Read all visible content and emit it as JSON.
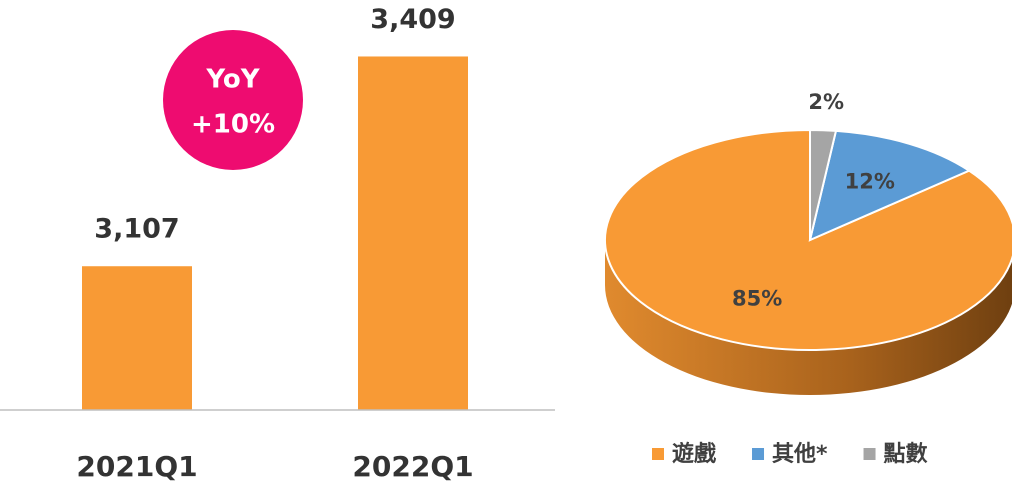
{
  "chart_data": [
    {
      "type": "bar",
      "categories": [
        "2021Q1",
        "2022Q1"
      ],
      "values": [
        3107,
        3409
      ],
      "value_labels": [
        "3,107",
        "3,409"
      ],
      "color": "#f89a35",
      "ylim": [
        2900,
        3450
      ],
      "annotations": [
        "YoY",
        "+10%"
      ]
    },
    {
      "type": "pie",
      "categories": [
        "遊戲",
        "其他*",
        "點數"
      ],
      "values": [
        85,
        12,
        2
      ],
      "colors": [
        "#f89a35",
        "#5b9bd5",
        "#a5a5a5"
      ]
    }
  ]
}
